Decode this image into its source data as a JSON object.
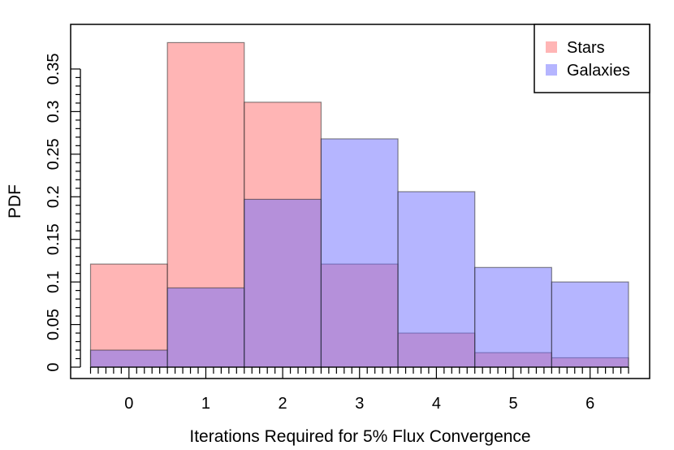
{
  "chart_data": {
    "type": "bar",
    "subtype": "overlapping-histogram",
    "title": "",
    "xlabel": "Iterations Required for 5% Flux Convergence",
    "ylabel": "PDF",
    "categories": [
      "0",
      "1",
      "2",
      "3",
      "4",
      "5",
      "6"
    ],
    "x": [
      0,
      1,
      2,
      3,
      4,
      5,
      6
    ],
    "bin_width": 1,
    "xlim": [
      -0.5,
      6.5
    ],
    "ylim": [
      0,
      0.39
    ],
    "xticks": [
      "0",
      "1",
      "2",
      "3",
      "4",
      "5",
      "6"
    ],
    "yticks": [
      "0",
      "0.05",
      "0.1",
      "0.15",
      "0.2",
      "0.25",
      "0.3",
      "0.35"
    ],
    "ytick_values": [
      0,
      0.05,
      0.1,
      0.15,
      0.2,
      0.25,
      0.3,
      0.35
    ],
    "grid": false,
    "legend_position": "top-right",
    "series": [
      {
        "name": "Stars",
        "color": "#ff6b6b",
        "values": [
          0.121,
          0.381,
          0.311,
          0.121,
          0.04,
          0.017,
          0.011
        ]
      },
      {
        "name": "Galaxies",
        "color": "#6b6bff",
        "values": [
          0.02,
          0.093,
          0.197,
          0.268,
          0.206,
          0.117,
          0.1
        ]
      }
    ]
  }
}
